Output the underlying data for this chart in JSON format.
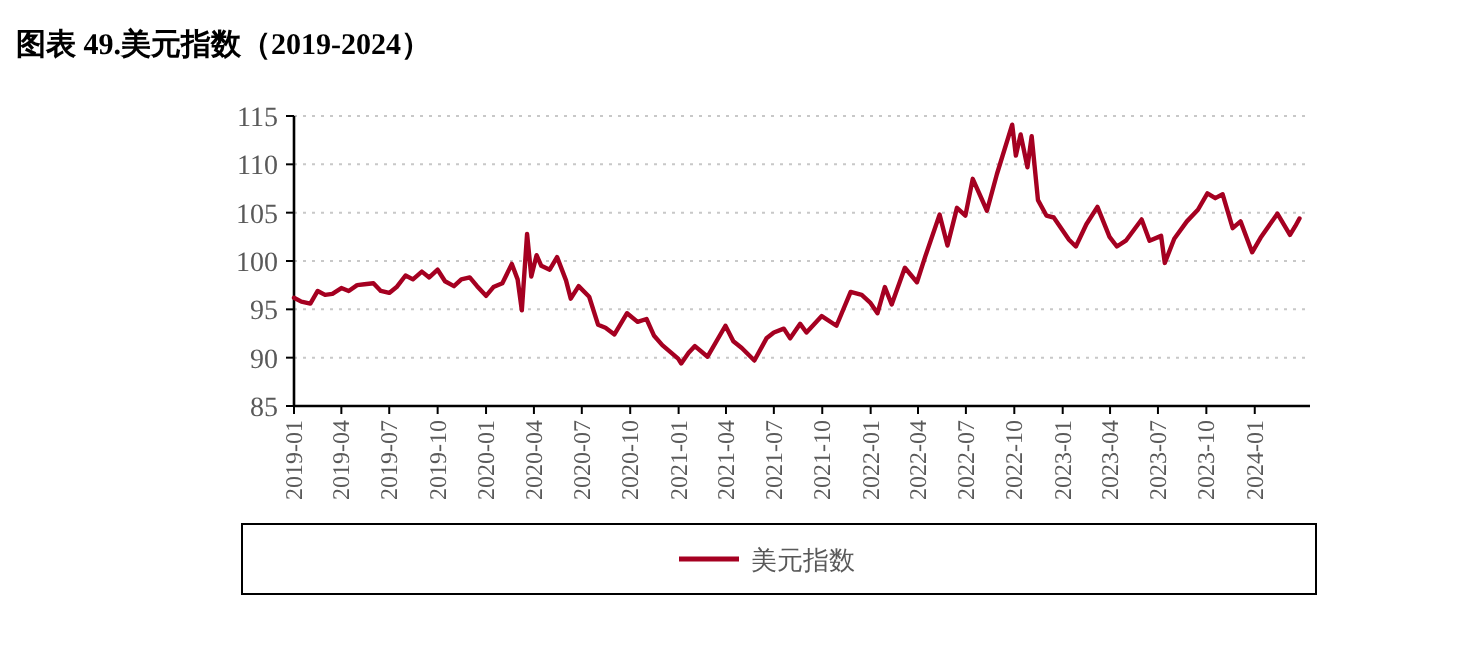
{
  "chart_data": {
    "type": "line",
    "title": "图表 49.美元指数（2019-2024）",
    "x": [
      "2019-01-01",
      "2019-01-15",
      "2019-02-01",
      "2019-02-15",
      "2019-03-01",
      "2019-03-15",
      "2019-04-01",
      "2019-04-15",
      "2019-05-01",
      "2019-05-15",
      "2019-06-01",
      "2019-06-15",
      "2019-07-01",
      "2019-07-15",
      "2019-08-01",
      "2019-08-15",
      "2019-09-01",
      "2019-09-15",
      "2019-10-01",
      "2019-10-15",
      "2019-11-01",
      "2019-11-15",
      "2019-12-01",
      "2019-12-15",
      "2020-01-01",
      "2020-01-15",
      "2020-02-01",
      "2020-02-19",
      "2020-03-01",
      "2020-03-09",
      "2020-03-19",
      "2020-03-27",
      "2020-04-06",
      "2020-04-15",
      "2020-05-01",
      "2020-05-15",
      "2020-06-01",
      "2020-06-10",
      "2020-06-25",
      "2020-07-15",
      "2020-08-01",
      "2020-08-15",
      "2020-09-01",
      "2020-09-25",
      "2020-10-15",
      "2020-11-01",
      "2020-11-15",
      "2020-12-01",
      "2020-12-31",
      "2021-01-06",
      "2021-01-20",
      "2021-02-01",
      "2021-02-25",
      "2021-03-31",
      "2021-04-15",
      "2021-05-01",
      "2021-05-25",
      "2021-06-17",
      "2021-07-01",
      "2021-07-20",
      "2021-08-01",
      "2021-08-20",
      "2021-09-01",
      "2021-09-30",
      "2021-10-28",
      "2021-11-24",
      "2021-12-15",
      "2021-12-31",
      "2022-01-14",
      "2022-01-28",
      "2022-02-10",
      "2022-03-07",
      "2022-03-30",
      "2022-04-15",
      "2022-05-12",
      "2022-05-27",
      "2022-06-14",
      "2022-06-30",
      "2022-07-14",
      "2022-08-10",
      "2022-08-29",
      "2022-09-27",
      "2022-10-04",
      "2022-10-13",
      "2022-10-26",
      "2022-11-03",
      "2022-11-15",
      "2022-12-01",
      "2022-12-15",
      "2023-01-13",
      "2023-01-26",
      "2023-02-15",
      "2023-03-08",
      "2023-03-31",
      "2023-04-14",
      "2023-05-01",
      "2023-05-31",
      "2023-06-15",
      "2023-07-07",
      "2023-07-14",
      "2023-08-01",
      "2023-08-25",
      "2023-09-15",
      "2023-10-03",
      "2023-10-18",
      "2023-11-01",
      "2023-11-20",
      "2023-12-05",
      "2023-12-27",
      "2024-01-12",
      "2024-02-13",
      "2024-03-08",
      "2024-03-18",
      "2024-03-26"
    ],
    "series": [
      {
        "name": "美元指数",
        "color": "#a50021",
        "values": [
          96.2,
          95.8,
          95.6,
          96.9,
          96.5,
          96.6,
          97.2,
          96.9,
          97.5,
          97.6,
          97.7,
          96.9,
          96.7,
          97.3,
          98.5,
          98.1,
          98.9,
          98.3,
          99.1,
          97.9,
          97.4,
          98.1,
          98.3,
          97.4,
          96.4,
          97.3,
          97.7,
          99.7,
          98.1,
          94.9,
          102.8,
          98.4,
          100.6,
          99.5,
          99.1,
          100.4,
          98.0,
          96.1,
          97.4,
          96.3,
          93.4,
          93.1,
          92.4,
          94.6,
          93.7,
          94.0,
          92.3,
          91.3,
          89.9,
          89.4,
          90.5,
          91.2,
          90.1,
          93.3,
          91.7,
          91.0,
          89.7,
          92.0,
          92.6,
          93.0,
          92.0,
          93.5,
          92.6,
          94.3,
          93.3,
          96.8,
          96.5,
          95.7,
          94.6,
          97.3,
          95.5,
          99.3,
          97.8,
          100.5,
          104.8,
          101.6,
          105.5,
          104.7,
          108.5,
          105.2,
          109.0,
          114.1,
          110.9,
          113.1,
          109.7,
          112.9,
          106.3,
          104.7,
          104.5,
          102.2,
          101.5,
          103.8,
          105.6,
          102.5,
          101.5,
          102.1,
          104.3,
          102.1,
          102.6,
          99.8,
          102.3,
          104.1,
          105.3,
          107.0,
          106.5,
          106.9,
          103.4,
          104.1,
          100.9,
          102.4,
          104.9,
          102.7,
          103.6,
          104.4
        ]
      }
    ],
    "xlim": [
      "2019-01-01",
      "2024-04-15"
    ],
    "xticks": [
      "2019-01",
      "2019-04",
      "2019-07",
      "2019-10",
      "2020-01",
      "2020-04",
      "2020-07",
      "2020-10",
      "2021-01",
      "2021-04",
      "2021-07",
      "2021-10",
      "2022-01",
      "2022-04",
      "2022-07",
      "2022-10",
      "2023-01",
      "2023-04",
      "2023-07",
      "2023-10",
      "2024-01"
    ],
    "ylim": [
      85,
      115
    ],
    "yticks": [
      85,
      90,
      95,
      100,
      105,
      110,
      115
    ],
    "grid": "y",
    "legend": "bottom"
  }
}
